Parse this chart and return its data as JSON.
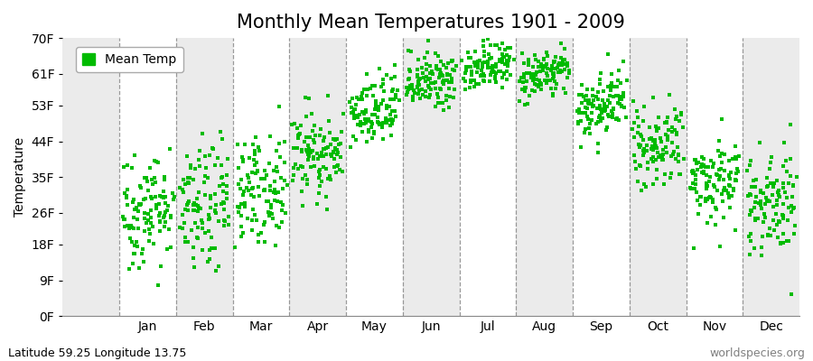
{
  "title": "Monthly Mean Temperatures 1901 - 2009",
  "ylabel": "Temperature",
  "yticks": [
    0,
    9,
    18,
    26,
    35,
    44,
    53,
    61,
    70
  ],
  "ytick_labels": [
    "0F",
    "9F",
    "18F",
    "26F",
    "35F",
    "44F",
    "53F",
    "61F",
    "70F"
  ],
  "ylim": [
    0,
    70
  ],
  "months": [
    "Jan",
    "Feb",
    "Mar",
    "Apr",
    "May",
    "Jun",
    "Jul",
    "Aug",
    "Sep",
    "Oct",
    "Nov",
    "Dec"
  ],
  "dot_color": "#00BB00",
  "background_color": "#FFFFFF",
  "band_color_light": "#EBEBEB",
  "band_color_white": "#FFFFFF",
  "legend_label": "Mean Temp",
  "footnote_left": "Latitude 59.25 Longitude 13.75",
  "footnote_right": "worldspecies.org",
  "title_fontsize": 15,
  "axis_fontsize": 10,
  "footnote_fontsize": 9,
  "mean_temps_F": [
    27.0,
    27.0,
    32.0,
    41.0,
    51.0,
    59.0,
    63.0,
    61.0,
    53.0,
    43.0,
    34.0,
    29.0
  ],
  "std_temps_F": [
    7.5,
    8.0,
    6.5,
    5.5,
    4.5,
    3.5,
    3.0,
    3.0,
    4.0,
    4.5,
    5.5,
    7.0
  ],
  "n_years": 109,
  "start_year": 1901,
  "end_year": 2009
}
